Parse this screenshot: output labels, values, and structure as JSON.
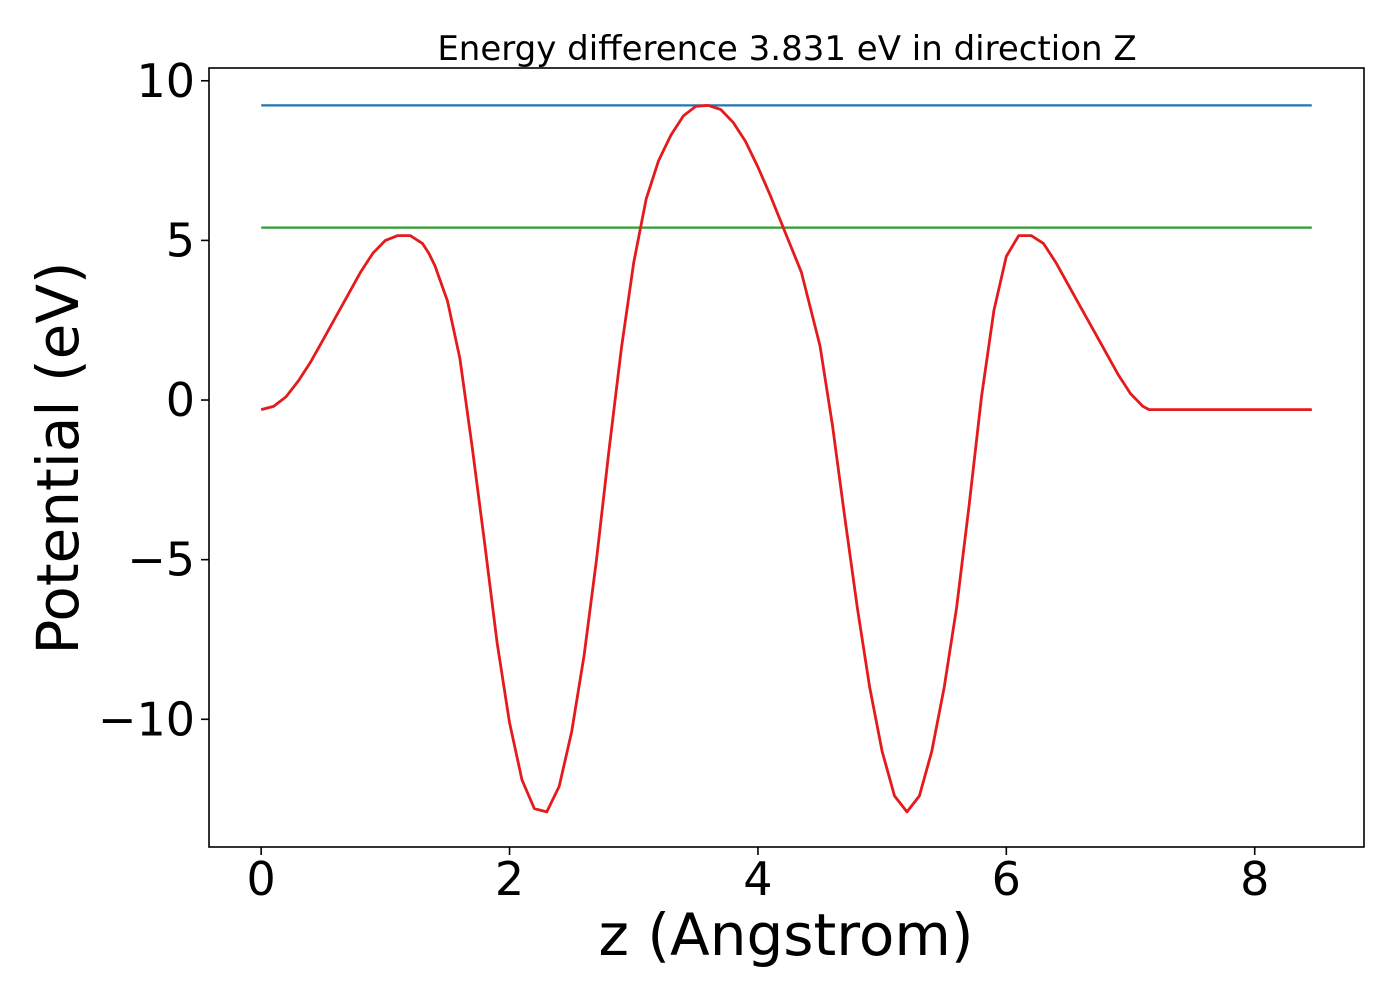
{
  "chart_data": {
    "type": "line",
    "title": "Energy difference 3.831 eV in direction Z",
    "xlabel": "z (Angstrom)",
    "ylabel": "Potential (eV)",
    "xlim": [
      -0.42,
      8.88
    ],
    "ylim": [
      -14.0,
      10.4
    ],
    "xticks": [
      0,
      2,
      4,
      6,
      8
    ],
    "xtick_labels": [
      "0",
      "2",
      "4",
      "6",
      "8"
    ],
    "yticks": [
      -10,
      -5,
      0,
      5,
      10
    ],
    "ytick_labels": [
      "−10",
      "−5",
      "0",
      "5",
      "10"
    ],
    "grid": false,
    "series": [
      {
        "color": "#1f77b4",
        "x": [
          0,
          8.46
        ],
        "y": [
          9.23,
          9.23
        ]
      },
      {
        "color": "#2ca02c",
        "x": [
          0,
          8.46
        ],
        "y": [
          5.4,
          5.4
        ]
      },
      {
        "color": "#e41a1c",
        "x": [
          0,
          0.1,
          0.2,
          0.3,
          0.4,
          0.5,
          0.6,
          0.7,
          0.8,
          0.9,
          1.0,
          1.1,
          1.2,
          1.3,
          1.35,
          1.4,
          1.5,
          1.6,
          1.7,
          1.8,
          1.9,
          2.0,
          2.1,
          2.2,
          2.3,
          2.4,
          2.5,
          2.6,
          2.7,
          2.8,
          2.9,
          3.0,
          3.1,
          3.2,
          3.3,
          3.4,
          3.5,
          3.6,
          3.7,
          3.8,
          3.9,
          4.0,
          4.1,
          4.23,
          4.35,
          4.5,
          4.6,
          4.7,
          4.8,
          4.9,
          5.0,
          5.1,
          5.2,
          5.3,
          5.4,
          5.5,
          5.6,
          5.7,
          5.8,
          5.9,
          6.0,
          6.1,
          6.2,
          6.3,
          6.4,
          6.5,
          6.6,
          6.7,
          6.8,
          6.9,
          7.0,
          7.1,
          7.15,
          7.2,
          7.3,
          7.4,
          7.5,
          7.6,
          7.7,
          7.8,
          7.9,
          8.0,
          8.1,
          8.2,
          8.3,
          8.4,
          8.46
        ],
        "y": [
          -0.3,
          -0.2,
          0.1,
          0.6,
          1.2,
          1.9,
          2.6,
          3.3,
          4.0,
          4.6,
          5.0,
          5.15,
          5.15,
          4.9,
          4.6,
          4.2,
          3.1,
          1.3,
          -1.5,
          -4.5,
          -7.6,
          -10.1,
          -11.9,
          -12.8,
          -12.9,
          -12.1,
          -10.4,
          -8.0,
          -5.0,
          -1.6,
          1.6,
          4.3,
          6.3,
          7.5,
          8.3,
          8.9,
          9.2,
          9.23,
          9.1,
          8.7,
          8.1,
          7.3,
          6.4,
          5.15,
          4.0,
          1.7,
          -0.8,
          -3.7,
          -6.5,
          -9.0,
          -11.0,
          -12.4,
          -12.9,
          -12.4,
          -11.0,
          -9.0,
          -6.5,
          -3.3,
          0.1,
          2.8,
          4.5,
          5.15,
          5.15,
          4.9,
          4.3,
          3.6,
          2.9,
          2.2,
          1.5,
          0.8,
          0.2,
          -0.2,
          -0.3,
          -0.3,
          -0.3,
          -0.3,
          -0.3,
          -0.3,
          -0.3,
          -0.3,
          -0.3,
          -0.3,
          -0.3,
          -0.3,
          -0.3,
          -0.3,
          -0.3
        ]
      }
    ]
  }
}
